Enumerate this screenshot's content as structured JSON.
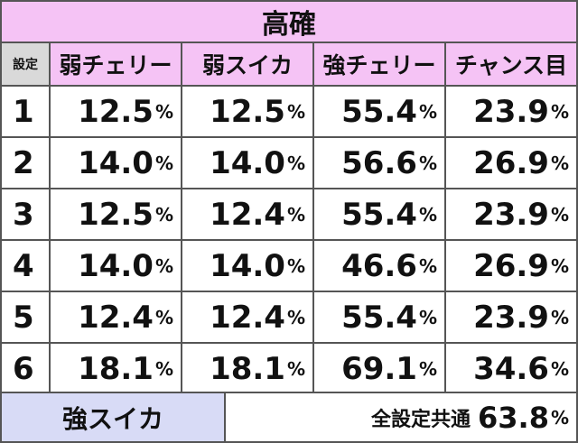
{
  "title": "高確",
  "header": {
    "setting": "設定",
    "columns": [
      "弱チェリー",
      "弱スイカ",
      "強チェリー",
      "チャンス目"
    ]
  },
  "percent_sign": "%",
  "rows": [
    {
      "setting": "1",
      "values": [
        "12.5",
        "12.5",
        "55.4",
        "23.9"
      ]
    },
    {
      "setting": "2",
      "values": [
        "14.0",
        "14.0",
        "56.6",
        "26.9"
      ]
    },
    {
      "setting": "3",
      "values": [
        "12.5",
        "12.4",
        "55.4",
        "23.9"
      ]
    },
    {
      "setting": "4",
      "values": [
        "14.0",
        "14.0",
        "46.6",
        "26.9"
      ]
    },
    {
      "setting": "5",
      "values": [
        "12.4",
        "12.4",
        "55.4",
        "23.9"
      ]
    },
    {
      "setting": "6",
      "values": [
        "18.1",
        "18.1",
        "69.1",
        "34.6"
      ]
    }
  ],
  "footer": {
    "label": "強スイカ",
    "text": "全設定共通",
    "value": "63.8"
  }
}
